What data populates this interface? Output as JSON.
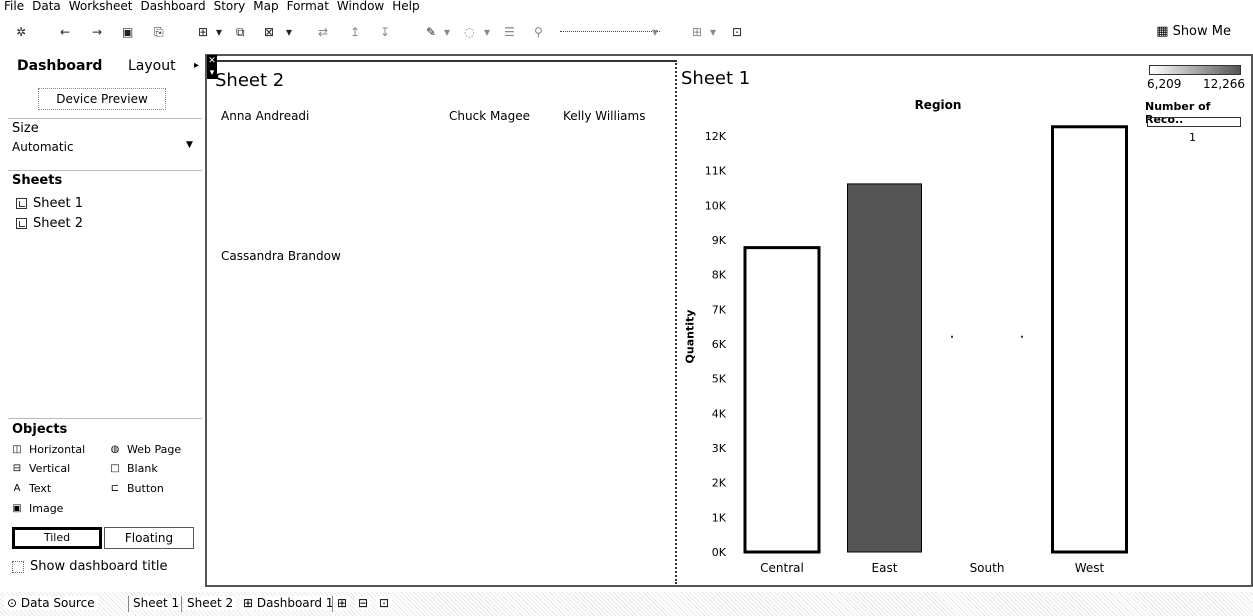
{
  "menu": [
    "File",
    "Data",
    "Worksheet",
    "Dashboard",
    "Story",
    "Map",
    "Format",
    "Window",
    "Help"
  ],
  "toolbar": {
    "show_me": "Show Me"
  },
  "left_panel": {
    "tab_dashboard": "Dashboard",
    "tab_layout": "Layout",
    "device_preview": "Device Preview",
    "size_label": "Size",
    "size_value": "Automatic",
    "sheets_label": "Sheets",
    "sheets": [
      "Sheet 1",
      "Sheet 2"
    ],
    "objects_label": "Objects",
    "objects": [
      {
        "label": "Horizontal",
        "icon": "horizontal-icon"
      },
      {
        "label": "Web Page",
        "icon": "web-page-icon"
      },
      {
        "label": "Vertical",
        "icon": "vertical-icon"
      },
      {
        "label": "Blank",
        "icon": "blank-icon"
      },
      {
        "label": "Text",
        "icon": "text-icon"
      },
      {
        "label": "Button",
        "icon": "button-icon"
      },
      {
        "label": "Image",
        "icon": "image-icon"
      }
    ],
    "tiled_label": "Tiled",
    "floating_label": "Floating",
    "show_title_label": "Show dashboard title"
  },
  "sheet2": {
    "title": "Sheet 2",
    "names": [
      "Anna Andreadi",
      "Chuck Magee",
      "Kelly Williams",
      "Cassandra Brandow"
    ]
  },
  "sheet1": {
    "title": "Sheet 1",
    "legend_color_min": "6,209",
    "legend_color_max": "12,266",
    "legend_size_title": "Number of Reco..",
    "legend_size_value": "1"
  },
  "chart_data": {
    "type": "bar",
    "title": "Sheet 1",
    "xlabel": "Region",
    "ylabel": "Quantity",
    "categories": [
      "Central",
      "East",
      "South",
      "West"
    ],
    "values": [
      8780,
      10618,
      6209,
      12266
    ],
    "yticks": [
      "0K",
      "1K",
      "2K",
      "3K",
      "4K",
      "5K",
      "6K",
      "7K",
      "8K",
      "9K",
      "10K",
      "11K",
      "12K"
    ],
    "ylim": [
      0,
      12300
    ]
  },
  "bottom_tabs": {
    "data_source": "Data Source",
    "sheet1": "Sheet 1",
    "sheet2": "Sheet 2",
    "dashboard1": "Dashboard 1"
  },
  "colors": {
    "accent": "#000000",
    "east_fill": "#555555"
  }
}
